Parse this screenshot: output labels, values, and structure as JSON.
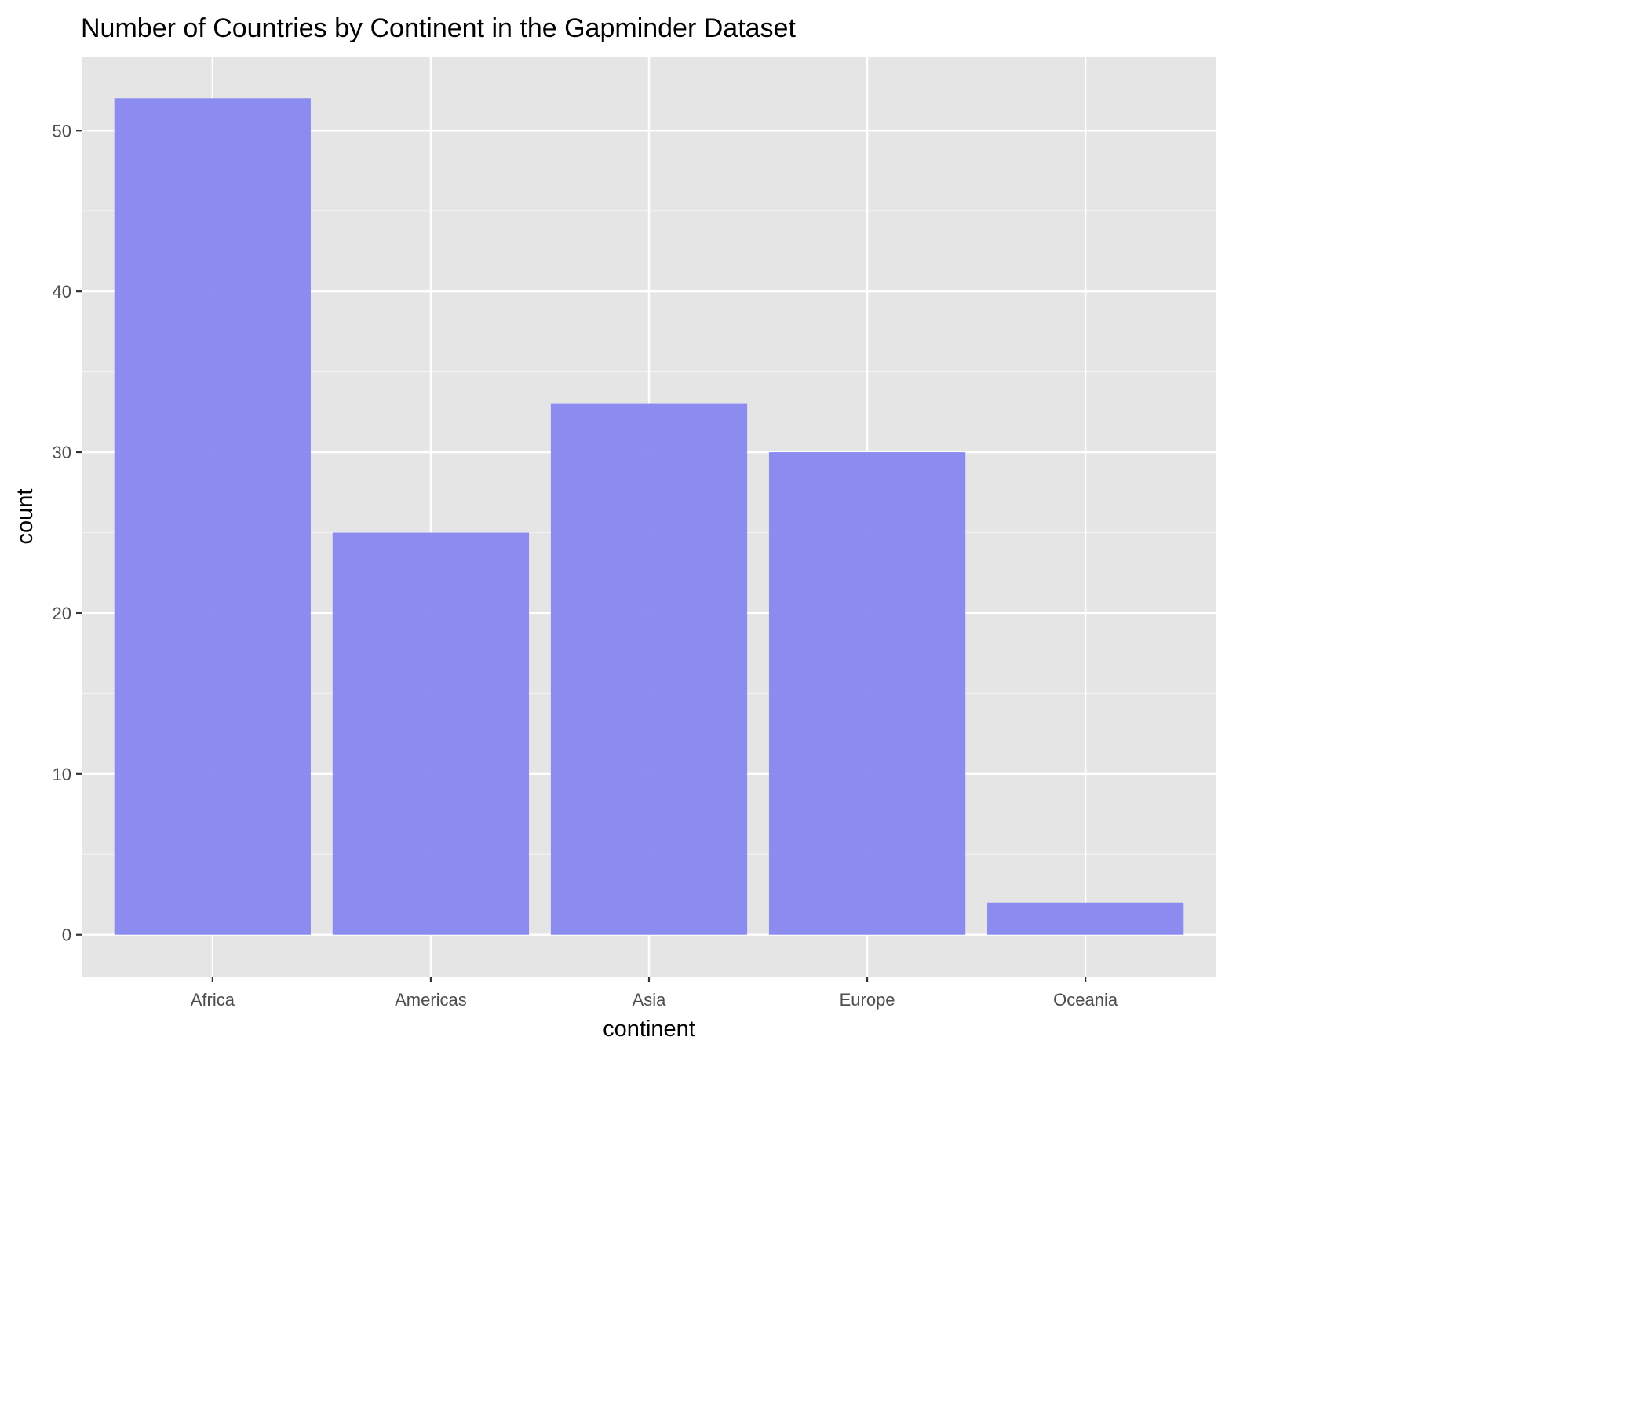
{
  "chart_data": {
    "type": "bar",
    "title": "Number of Countries by Continent in the Gapminder Dataset",
    "xlabel": "continent",
    "ylabel": "count",
    "categories": [
      "Africa",
      "Americas",
      "Asia",
      "Europe",
      "Oceania"
    ],
    "values": [
      52,
      25,
      33,
      30,
      2
    ],
    "ylim": [
      -2.6,
      54.6
    ],
    "y_ticks": [
      "0",
      "10",
      "20",
      "30",
      "40",
      "50"
    ],
    "grid": true,
    "legend": "none",
    "colors": {
      "bar": "#8888f0",
      "panel_background": "#e5e5e5",
      "grid_major": "#ffffff",
      "grid_minor": "#f2f2f2",
      "tick_text": "#4d4d4d"
    }
  }
}
